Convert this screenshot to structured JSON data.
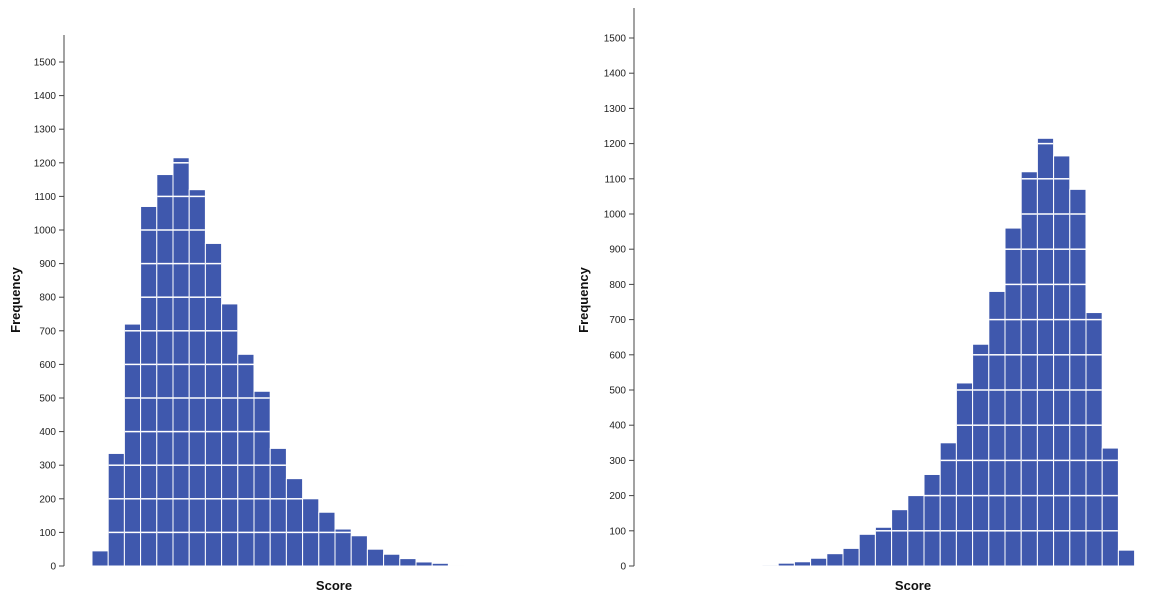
{
  "chart_data": [
    {
      "type": "bar",
      "title": "",
      "xlabel": "Score",
      "ylabel": "Frequency",
      "ylim": [
        0,
        1550
      ],
      "yticks": [
        0,
        100,
        200,
        300,
        400,
        500,
        600,
        700,
        800,
        900,
        1000,
        1100,
        1200,
        1300,
        1400,
        1500
      ],
      "grid": false,
      "bar_color": "#3f58ad",
      "values": [
        45,
        335,
        720,
        1070,
        1165,
        1215,
        1120,
        960,
        780,
        630,
        520,
        350,
        260,
        200,
        160,
        110,
        90,
        50,
        35,
        22,
        12,
        8,
        3
      ]
    },
    {
      "type": "bar",
      "title": "",
      "xlabel": "Score",
      "ylabel": "Frequency",
      "ylim": [
        0,
        1550
      ],
      "yticks": [
        0,
        100,
        200,
        300,
        400,
        500,
        600,
        700,
        800,
        900,
        1000,
        1100,
        1200,
        1300,
        1400,
        1500
      ],
      "grid": false,
      "bar_color": "#3f58ad",
      "values": [
        3,
        8,
        12,
        22,
        35,
        50,
        90,
        110,
        160,
        200,
        260,
        350,
        520,
        630,
        780,
        960,
        1120,
        1215,
        1165,
        1070,
        720,
        335,
        45
      ]
    }
  ]
}
